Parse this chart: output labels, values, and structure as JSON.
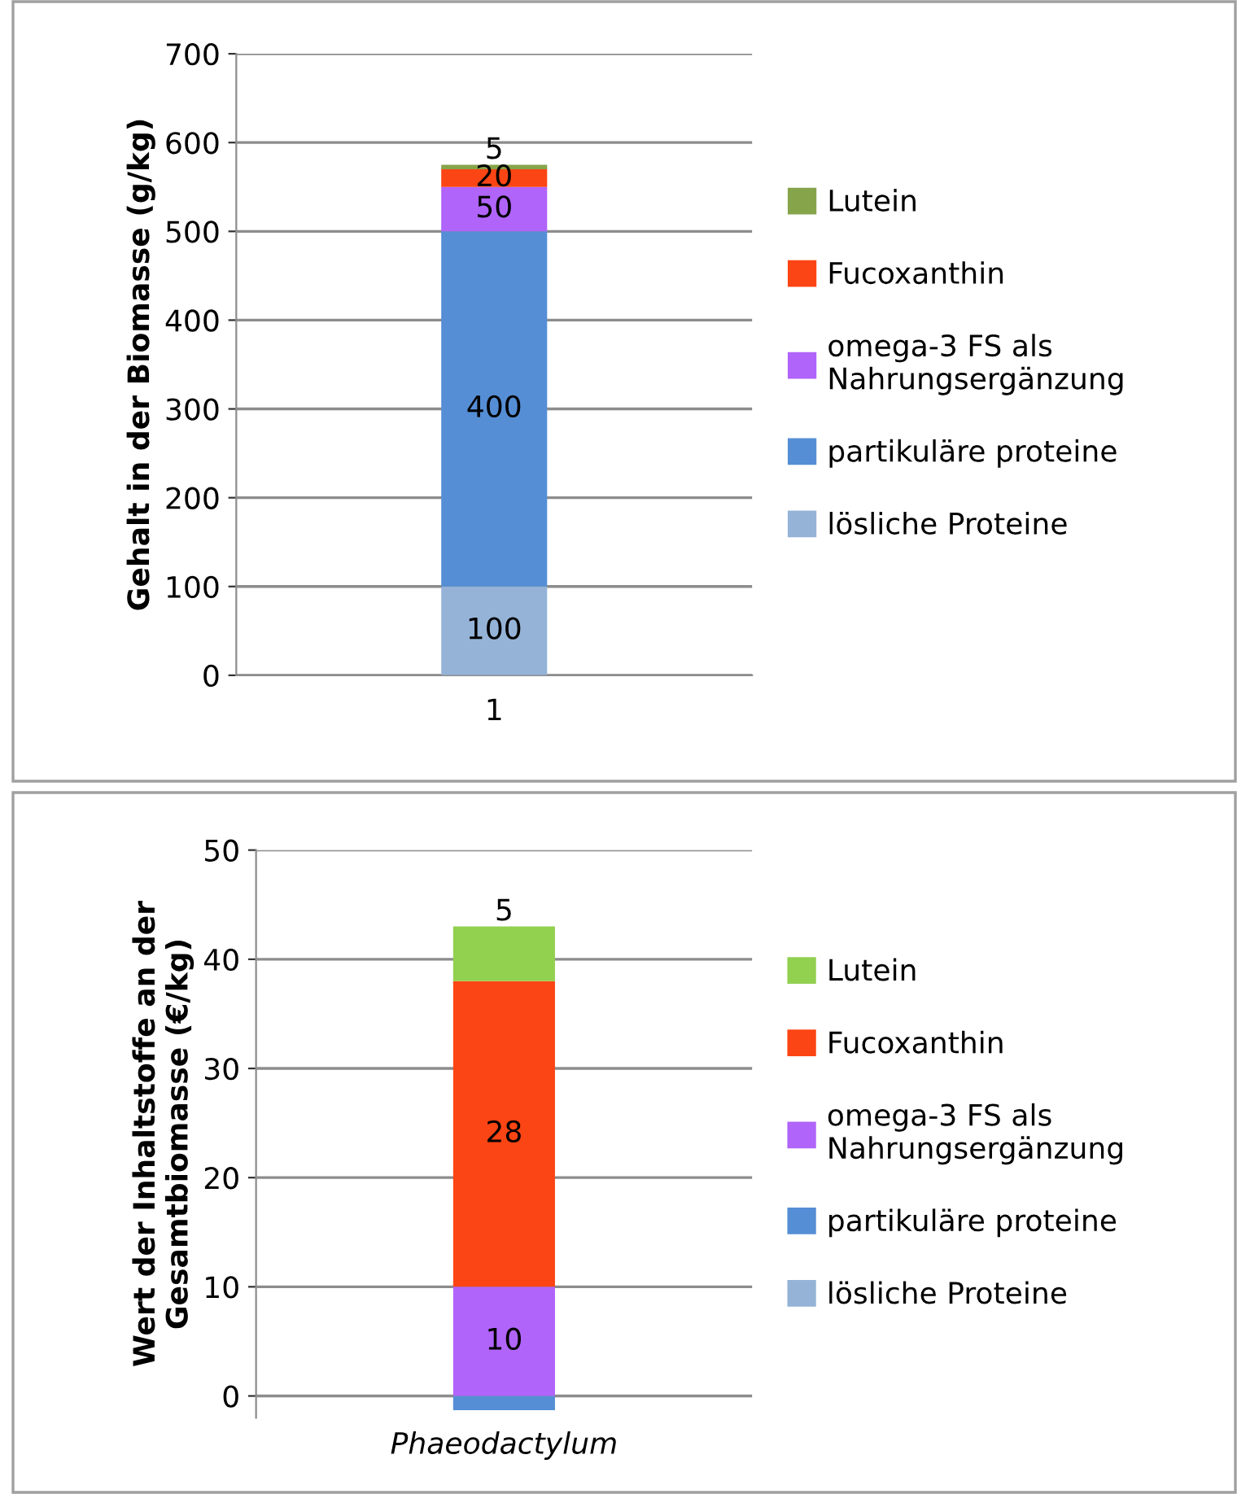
{
  "chart_data": [
    {
      "type": "bar",
      "stacked": true,
      "ylabel": "Gehalt in der Biomasse (g/kg)",
      "categories": [
        "1"
      ],
      "ylim": [
        0,
        700
      ],
      "yticks": [
        0,
        100,
        200,
        300,
        400,
        500,
        600,
        700
      ],
      "grid": "y",
      "legend": "right",
      "data_labels": true,
      "series": [
        {
          "name": "lösliche Proteine",
          "color": "#95b3d7",
          "values": [
            100
          ]
        },
        {
          "name": "partikuläre proteine",
          "color": "#558ed5",
          "values": [
            400
          ]
        },
        {
          "name": "omega-3 FS als\nNahrungsergänzung",
          "color": "#b064fa",
          "values": [
            50
          ]
        },
        {
          "name": "Fucoxanthin",
          "color": "#fc4514",
          "values": [
            20
          ]
        },
        {
          "name": "Lutein",
          "color": "#86a44a",
          "values": [
            5
          ]
        }
      ]
    },
    {
      "type": "bar",
      "stacked": true,
      "ylabel": "Wert der Inhaltstoffe an der\nGesamtbiomasse (€/kg)",
      "categories": [
        "Phaeodactylum"
      ],
      "ylim": [
        -2,
        50
      ],
      "yticks": [
        0,
        10,
        20,
        30,
        40,
        50
      ],
      "grid": "y",
      "legend": "right",
      "series": [
        {
          "name": "lösliche Proteine",
          "color": "#95b3d7",
          "values": [
            0
          ],
          "value_labels": [
            null
          ]
        },
        {
          "name": "partikuläre proteine",
          "color": "#558ed5",
          "values": [
            -1.3
          ],
          "value_labels": [
            null
          ]
        },
        {
          "name": "omega-3 FS als\nNahrungsergänzung",
          "color": "#b064fa",
          "values": [
            10
          ],
          "value_labels": [
            "10"
          ]
        },
        {
          "name": "Fucoxanthin",
          "color": "#fc4514",
          "values": [
            28
          ],
          "value_labels": [
            "28"
          ]
        },
        {
          "name": "Lutein",
          "color": "#92d050",
          "values": [
            5
          ],
          "value_labels": [
            "5"
          ]
        }
      ]
    }
  ]
}
